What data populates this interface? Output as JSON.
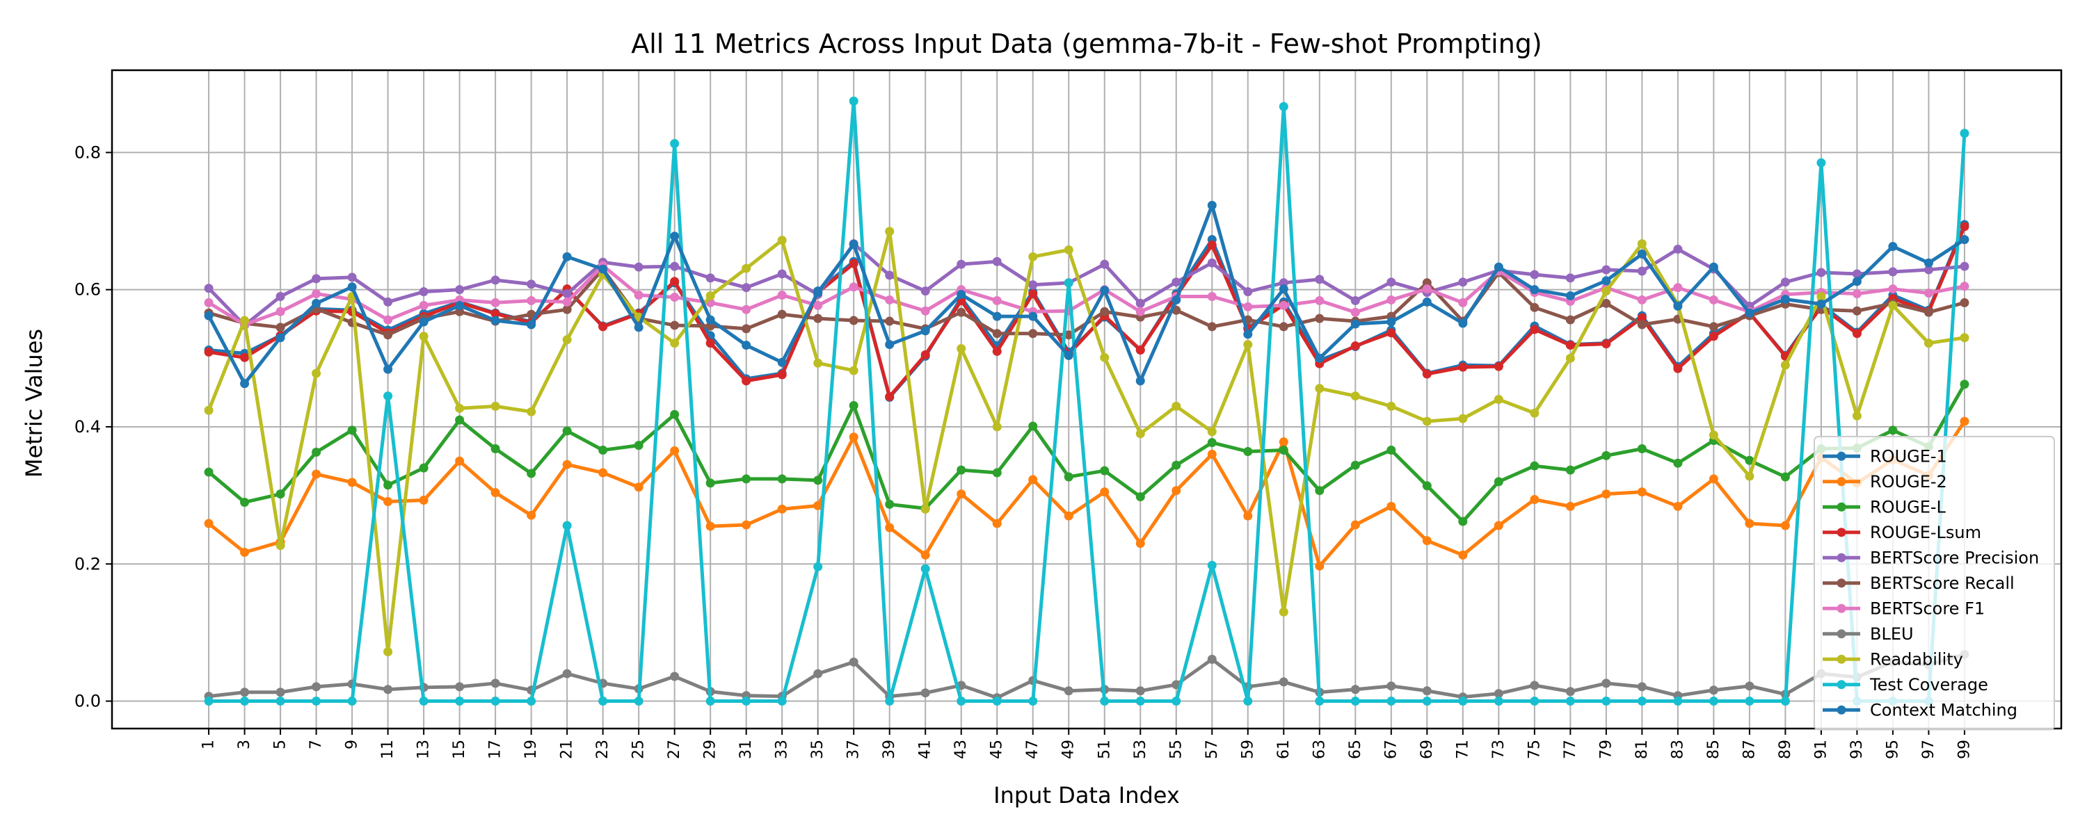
{
  "chart_data": {
    "type": "line",
    "title": "All 11 Metrics Across Input Data (gemma-7b-it - Few-shot Prompting)",
    "xlabel": "Input Data Index",
    "ylabel": "Metric Values",
    "x": [
      1,
      3,
      5,
      7,
      9,
      11,
      13,
      15,
      17,
      19,
      21,
      23,
      25,
      27,
      29,
      31,
      33,
      35,
      37,
      39,
      41,
      43,
      45,
      47,
      49,
      51,
      53,
      55,
      57,
      59,
      61,
      63,
      65,
      67,
      69,
      71,
      73,
      75,
      77,
      79,
      81,
      83,
      85,
      87,
      89,
      91,
      93,
      95,
      97,
      99
    ],
    "yticks": [
      "0.0",
      "0.2",
      "0.4",
      "0.6",
      "0.8"
    ],
    "ylim": [
      -0.04,
      0.92
    ],
    "grid": true,
    "legend_position": "right",
    "series": [
      {
        "name": "ROUGE-1",
        "color": "#1f77b4",
        "values": [
          0.512,
          0.507,
          0.533,
          0.572,
          0.57,
          0.541,
          0.565,
          0.582,
          0.566,
          0.553,
          0.6,
          0.547,
          0.566,
          0.61,
          0.533,
          0.47,
          0.478,
          0.598,
          0.641,
          0.443,
          0.503,
          0.588,
          0.518,
          0.597,
          0.509,
          0.56,
          0.512,
          0.594,
          0.673,
          0.544,
          0.582,
          0.497,
          0.517,
          0.541,
          0.478,
          0.49,
          0.489,
          0.547,
          0.52,
          0.522,
          0.562,
          0.488,
          0.536,
          0.566,
          0.504,
          0.578,
          0.538,
          0.592,
          0.57,
          0.695
        ]
      },
      {
        "name": "ROUGE-2",
        "color": "#ff7f0e",
        "values": [
          0.259,
          0.217,
          0.232,
          0.331,
          0.319,
          0.291,
          0.293,
          0.35,
          0.304,
          0.271,
          0.345,
          0.333,
          0.312,
          0.365,
          0.255,
          0.257,
          0.28,
          0.285,
          0.385,
          0.253,
          0.213,
          0.302,
          0.259,
          0.323,
          0.27,
          0.305,
          0.23,
          0.307,
          0.36,
          0.27,
          0.378,
          0.197,
          0.257,
          0.284,
          0.234,
          0.213,
          0.256,
          0.294,
          0.284,
          0.302,
          0.305,
          0.284,
          0.324,
          0.259,
          0.256,
          0.355,
          0.318,
          0.352,
          0.329,
          0.408
        ]
      },
      {
        "name": "ROUGE-L",
        "color": "#2ca02c",
        "values": [
          0.334,
          0.29,
          0.302,
          0.363,
          0.395,
          0.315,
          0.34,
          0.41,
          0.368,
          0.332,
          0.394,
          0.366,
          0.373,
          0.418,
          0.318,
          0.324,
          0.324,
          0.322,
          0.431,
          0.287,
          0.281,
          0.337,
          0.333,
          0.401,
          0.327,
          0.336,
          0.298,
          0.344,
          0.377,
          0.364,
          0.366,
          0.307,
          0.344,
          0.366,
          0.314,
          0.262,
          0.32,
          0.343,
          0.337,
          0.358,
          0.368,
          0.347,
          0.38,
          0.351,
          0.327,
          0.368,
          0.369,
          0.395,
          0.371,
          0.462
        ]
      },
      {
        "name": "ROUGE-Lsum",
        "color": "#d62728",
        "values": [
          0.509,
          0.501,
          0.533,
          0.569,
          0.568,
          0.537,
          0.561,
          0.581,
          0.565,
          0.552,
          0.601,
          0.546,
          0.565,
          0.612,
          0.522,
          0.467,
          0.476,
          0.596,
          0.638,
          0.444,
          0.505,
          0.584,
          0.51,
          0.594,
          0.506,
          0.562,
          0.512,
          0.591,
          0.665,
          0.543,
          0.578,
          0.492,
          0.518,
          0.537,
          0.477,
          0.487,
          0.488,
          0.542,
          0.519,
          0.521,
          0.559,
          0.485,
          0.532,
          0.566,
          0.503,
          0.575,
          0.536,
          0.587,
          0.568,
          0.692
        ]
      },
      {
        "name": "BERTScore Precision",
        "color": "#9467bd",
        "values": [
          0.602,
          0.548,
          0.59,
          0.616,
          0.618,
          0.582,
          0.597,
          0.6,
          0.614,
          0.608,
          0.594,
          0.64,
          0.633,
          0.634,
          0.617,
          0.603,
          0.623,
          0.593,
          0.667,
          0.621,
          0.598,
          0.637,
          0.641,
          0.607,
          0.61,
          0.637,
          0.58,
          0.611,
          0.639,
          0.597,
          0.61,
          0.615,
          0.584,
          0.611,
          0.596,
          0.611,
          0.628,
          0.622,
          0.617,
          0.629,
          0.627,
          0.659,
          0.63,
          0.576,
          0.611,
          0.625,
          0.623,
          0.626,
          0.629,
          0.634
        ]
      },
      {
        "name": "BERTScore Recall",
        "color": "#8c564b",
        "values": [
          0.566,
          0.551,
          0.545,
          0.572,
          0.552,
          0.534,
          0.558,
          0.568,
          0.554,
          0.564,
          0.571,
          0.63,
          0.558,
          0.548,
          0.547,
          0.543,
          0.564,
          0.558,
          0.555,
          0.554,
          0.543,
          0.567,
          0.536,
          0.536,
          0.534,
          0.568,
          0.56,
          0.57,
          0.546,
          0.556,
          0.546,
          0.558,
          0.554,
          0.561,
          0.61,
          0.554,
          0.625,
          0.574,
          0.556,
          0.58,
          0.549,
          0.557,
          0.546,
          0.562,
          0.579,
          0.571,
          0.569,
          0.58,
          0.567,
          0.581
        ]
      },
      {
        "name": "BERTScore F1",
        "color": "#e377c2",
        "values": [
          0.581,
          0.549,
          0.568,
          0.594,
          0.586,
          0.556,
          0.577,
          0.585,
          0.581,
          0.584,
          0.582,
          0.635,
          0.592,
          0.589,
          0.581,
          0.571,
          0.592,
          0.577,
          0.604,
          0.585,
          0.569,
          0.6,
          0.584,
          0.568,
          0.569,
          0.6,
          0.568,
          0.59,
          0.59,
          0.575,
          0.577,
          0.584,
          0.567,
          0.585,
          0.601,
          0.581,
          0.627,
          0.596,
          0.583,
          0.603,
          0.585,
          0.603,
          0.585,
          0.568,
          0.593,
          0.596,
          0.594,
          0.601,
          0.595,
          0.605
        ]
      },
      {
        "name": "BLEU",
        "color": "#7f7f7f",
        "values": [
          0.007,
          0.013,
          0.013,
          0.021,
          0.025,
          0.017,
          0.02,
          0.021,
          0.026,
          0.016,
          0.04,
          0.026,
          0.018,
          0.036,
          0.014,
          0.008,
          0.007,
          0.04,
          0.057,
          0.007,
          0.012,
          0.023,
          0.005,
          0.03,
          0.015,
          0.017,
          0.015,
          0.024,
          0.061,
          0.021,
          0.028,
          0.013,
          0.017,
          0.022,
          0.015,
          0.006,
          0.011,
          0.023,
          0.014,
          0.026,
          0.021,
          0.008,
          0.016,
          0.022,
          0.01,
          0.04,
          0.035,
          0.057,
          0.053,
          0.068
        ]
      },
      {
        "name": "Readability",
        "color": "#bcbd22",
        "values": [
          0.424,
          0.555,
          0.227,
          0.478,
          0.59,
          0.072,
          0.532,
          0.427,
          0.43,
          0.422,
          0.527,
          0.622,
          0.56,
          0.522,
          0.591,
          0.631,
          0.672,
          0.493,
          0.482,
          0.685,
          0.28,
          0.514,
          0.4,
          0.648,
          0.658,
          0.501,
          0.39,
          0.43,
          0.393,
          0.52,
          0.13,
          0.456,
          0.445,
          0.43,
          0.408,
          0.412,
          0.44,
          0.42,
          0.5,
          0.598,
          0.667,
          0.578,
          0.388,
          0.328,
          0.49,
          0.59,
          0.416,
          0.577,
          0.522,
          0.53
        ]
      },
      {
        "name": "Test Coverage",
        "color": "#17becf",
        "values": [
          0.0,
          0.0,
          0.0,
          0.0,
          0.0,
          0.445,
          0.0,
          0.0,
          0.0,
          0.0,
          0.256,
          0.0,
          0.0,
          0.813,
          0.0,
          0.0,
          0.0,
          0.196,
          0.875,
          0.0,
          0.193,
          0.0,
          0.0,
          0.0,
          0.61,
          0.0,
          0.0,
          0.0,
          0.198,
          0.0,
          0.867,
          0.0,
          0.0,
          0.0,
          0.0,
          0.0,
          0.0,
          0.0,
          0.0,
          0.0,
          0.0,
          0.0,
          0.0,
          0.0,
          0.0,
          0.785,
          0.0,
          0.0,
          0.0,
          0.828
        ]
      },
      {
        "name": "Context Matching",
        "color": "#1f77b4",
        "values": [
          0.562,
          0.463,
          0.53,
          0.58,
          0.604,
          0.484,
          0.553,
          0.577,
          0.555,
          0.549,
          0.648,
          0.63,
          0.545,
          0.678,
          0.556,
          0.519,
          0.494,
          0.596,
          0.666,
          0.52,
          0.54,
          0.593,
          0.561,
          0.561,
          0.504,
          0.599,
          0.467,
          0.585,
          0.723,
          0.535,
          0.601,
          0.5,
          0.55,
          0.553,
          0.582,
          0.551,
          0.633,
          0.6,
          0.591,
          0.613,
          0.652,
          0.576,
          0.633,
          0.566,
          0.586,
          0.579,
          0.612,
          0.663,
          0.639,
          0.673
        ]
      }
    ]
  }
}
